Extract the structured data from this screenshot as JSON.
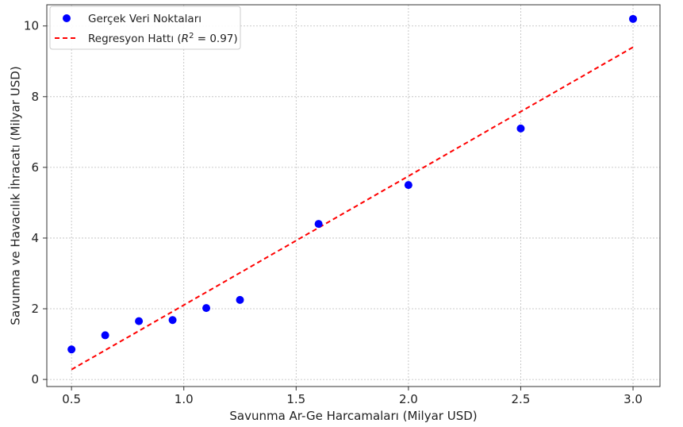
{
  "chart_data": {
    "type": "scatter",
    "title": "",
    "xlabel": "Savunma Ar-Ge Harcamaları (Milyar USD)",
    "ylabel": "Savunma ve Havacılık İhracatı (Milyar USD)",
    "xlim": [
      0.39,
      3.12
    ],
    "ylim": [
      -0.2,
      10.6
    ],
    "xticks": [
      "0.5",
      "1.0",
      "1.5",
      "2.0",
      "2.5",
      "3.0"
    ],
    "yticks": [
      "0",
      "2",
      "4",
      "6",
      "8",
      "10"
    ],
    "grid": true,
    "legend_position": "top-left",
    "series": [
      {
        "name": "Gerçek Veri Noktaları",
        "kind": "scatter",
        "color": "#0000ff",
        "x": [
          0.5,
          0.65,
          0.8,
          0.95,
          1.1,
          1.25,
          1.6,
          2.0,
          2.5,
          3.0
        ],
        "y": [
          0.85,
          1.25,
          1.65,
          1.68,
          2.02,
          2.25,
          4.4,
          5.5,
          7.1,
          10.2
        ]
      },
      {
        "name_prefix": "Regresyon Hattı (",
        "name_math_var": "R",
        "name_math_sup": "2",
        "name_math_rest": " = 0.97)",
        "kind": "line",
        "style": "dashed",
        "color": "#ff0000",
        "x": [
          0.5,
          3.0
        ],
        "y": [
          0.28,
          9.4
        ]
      }
    ]
  }
}
